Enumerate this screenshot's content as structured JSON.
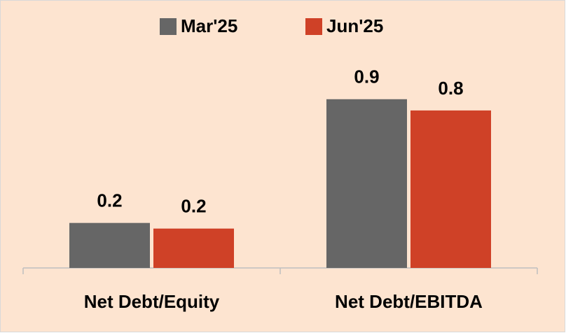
{
  "chart_data": {
    "type": "bar",
    "categories": [
      "Net Debt/Equity",
      "Net Debt/EBITDA"
    ],
    "series": [
      {
        "name": "Mar'25",
        "color": "#666666",
        "values": [
          0.24,
          0.9
        ],
        "value_labels": [
          "0.2",
          "0.9"
        ]
      },
      {
        "name": "Jun'25",
        "color": "#cf4127",
        "values": [
          0.21,
          0.84
        ],
        "value_labels": [
          "0.2",
          "0.8"
        ]
      }
    ],
    "legend": "top"
  }
}
